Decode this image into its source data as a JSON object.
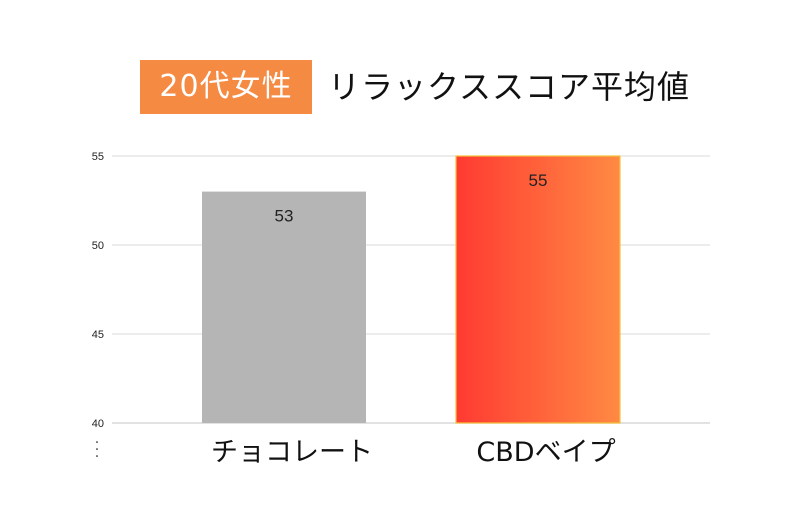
{
  "title": {
    "badge": "20代女性",
    "text": "リラックススコア平均値"
  },
  "colors": {
    "badge_bg": "#f58a43",
    "bar_gray": "#b5b5b5",
    "bar_gradient_start": "#ff3a32",
    "bar_gradient_end": "#ff8a43",
    "bar_border": "#f3c13b",
    "grid": "#d9d9d9"
  },
  "chart_data": {
    "type": "bar",
    "title": "20代女性 リラックススコア平均値",
    "categories": [
      "チョコレート",
      "CBDベイプ"
    ],
    "values": [
      53,
      55
    ],
    "ylim": [
      40,
      55
    ],
    "yticks": [
      40,
      45,
      50,
      55
    ],
    "xlabel": "",
    "ylabel": "",
    "grid": true,
    "data_labels": [
      "53",
      "55"
    ],
    "bar_styles": [
      "gray",
      "orange-gradient"
    ]
  }
}
